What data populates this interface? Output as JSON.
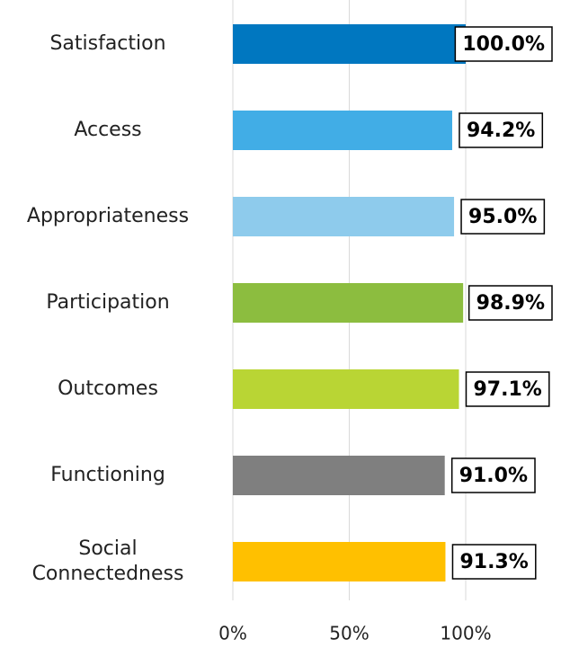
{
  "chart_data": {
    "type": "barh",
    "categories": [
      "Satisfaction",
      "Access",
      "Appropriateness",
      "Participation",
      "Outcomes",
      "Functioning",
      "Social\nConnectedness"
    ],
    "values": [
      100.0,
      94.2,
      95.0,
      98.9,
      97.1,
      91.0,
      91.3
    ],
    "value_labels": [
      "100.0%",
      "94.2%",
      "95.0%",
      "98.9%",
      "97.1%",
      "91.0%",
      "91.3%"
    ],
    "colors": [
      "#0077c0",
      "#41ade6",
      "#8ecbec",
      "#8cbd3f",
      "#b9d534",
      "#7f7f7f",
      "#ffc000"
    ],
    "xlim": [
      0,
      140
    ],
    "xticks": [
      {
        "value": 0,
        "label": "0%"
      },
      {
        "value": 50,
        "label": "50%"
      },
      {
        "value": 100,
        "label": "100%"
      }
    ],
    "grid": true
  }
}
